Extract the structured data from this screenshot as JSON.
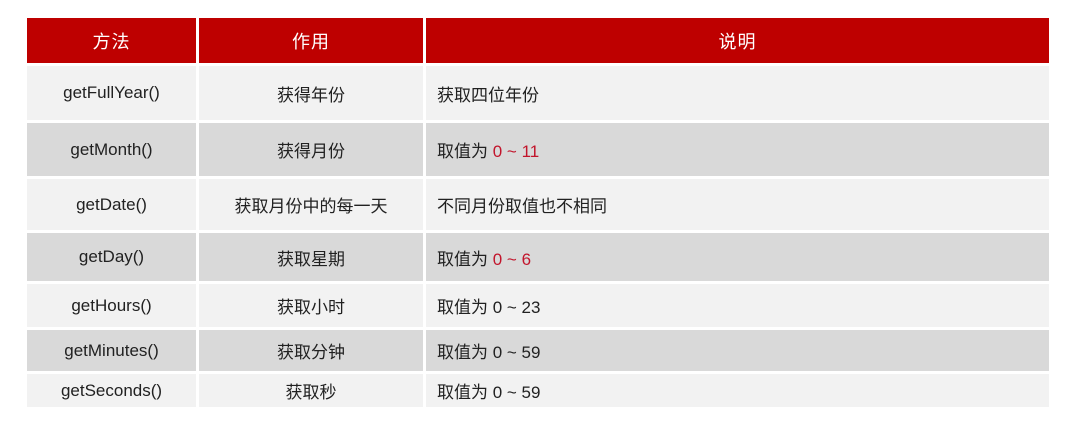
{
  "colors": {
    "header_bg": "#be0000",
    "header_text": "#ffffff",
    "row_light": "#f2f2f2",
    "row_dark": "#d9d9d9",
    "body_text": "#212121",
    "highlight_text": "#c2152c"
  },
  "table": {
    "headers": [
      "方法",
      "作用",
      "说明"
    ],
    "rows": [
      {
        "method": "getFullYear()",
        "role": "获得年份",
        "description": [
          {
            "text": "获取四位年份",
            "red": false
          }
        ]
      },
      {
        "method": "getMonth()",
        "role": "获得月份",
        "description": [
          {
            "text": "取值为 ",
            "red": false
          },
          {
            "text": "0 ~ 11",
            "red": true
          }
        ]
      },
      {
        "method": "getDate()",
        "role": "获取月份中的每一天",
        "description": [
          {
            "text": "不同月份取值也不相同",
            "red": false
          }
        ]
      },
      {
        "method": "getDay()",
        "role": "获取星期",
        "description": [
          {
            "text": "取值为 ",
            "red": false
          },
          {
            "text": "0 ~ 6",
            "red": true
          }
        ]
      },
      {
        "method": "getHours()",
        "role": "获取小时",
        "description": [
          {
            "text": "取值为 0 ~ 23",
            "red": false
          }
        ]
      },
      {
        "method": "getMinutes()",
        "role": "获取分钟",
        "description": [
          {
            "text": "取值为 0 ~ 59",
            "red": false
          }
        ]
      },
      {
        "method": "getSeconds()",
        "role": "获取秒",
        "description": [
          {
            "text": "取值为 0 ~ 59",
            "red": false
          }
        ]
      }
    ]
  }
}
